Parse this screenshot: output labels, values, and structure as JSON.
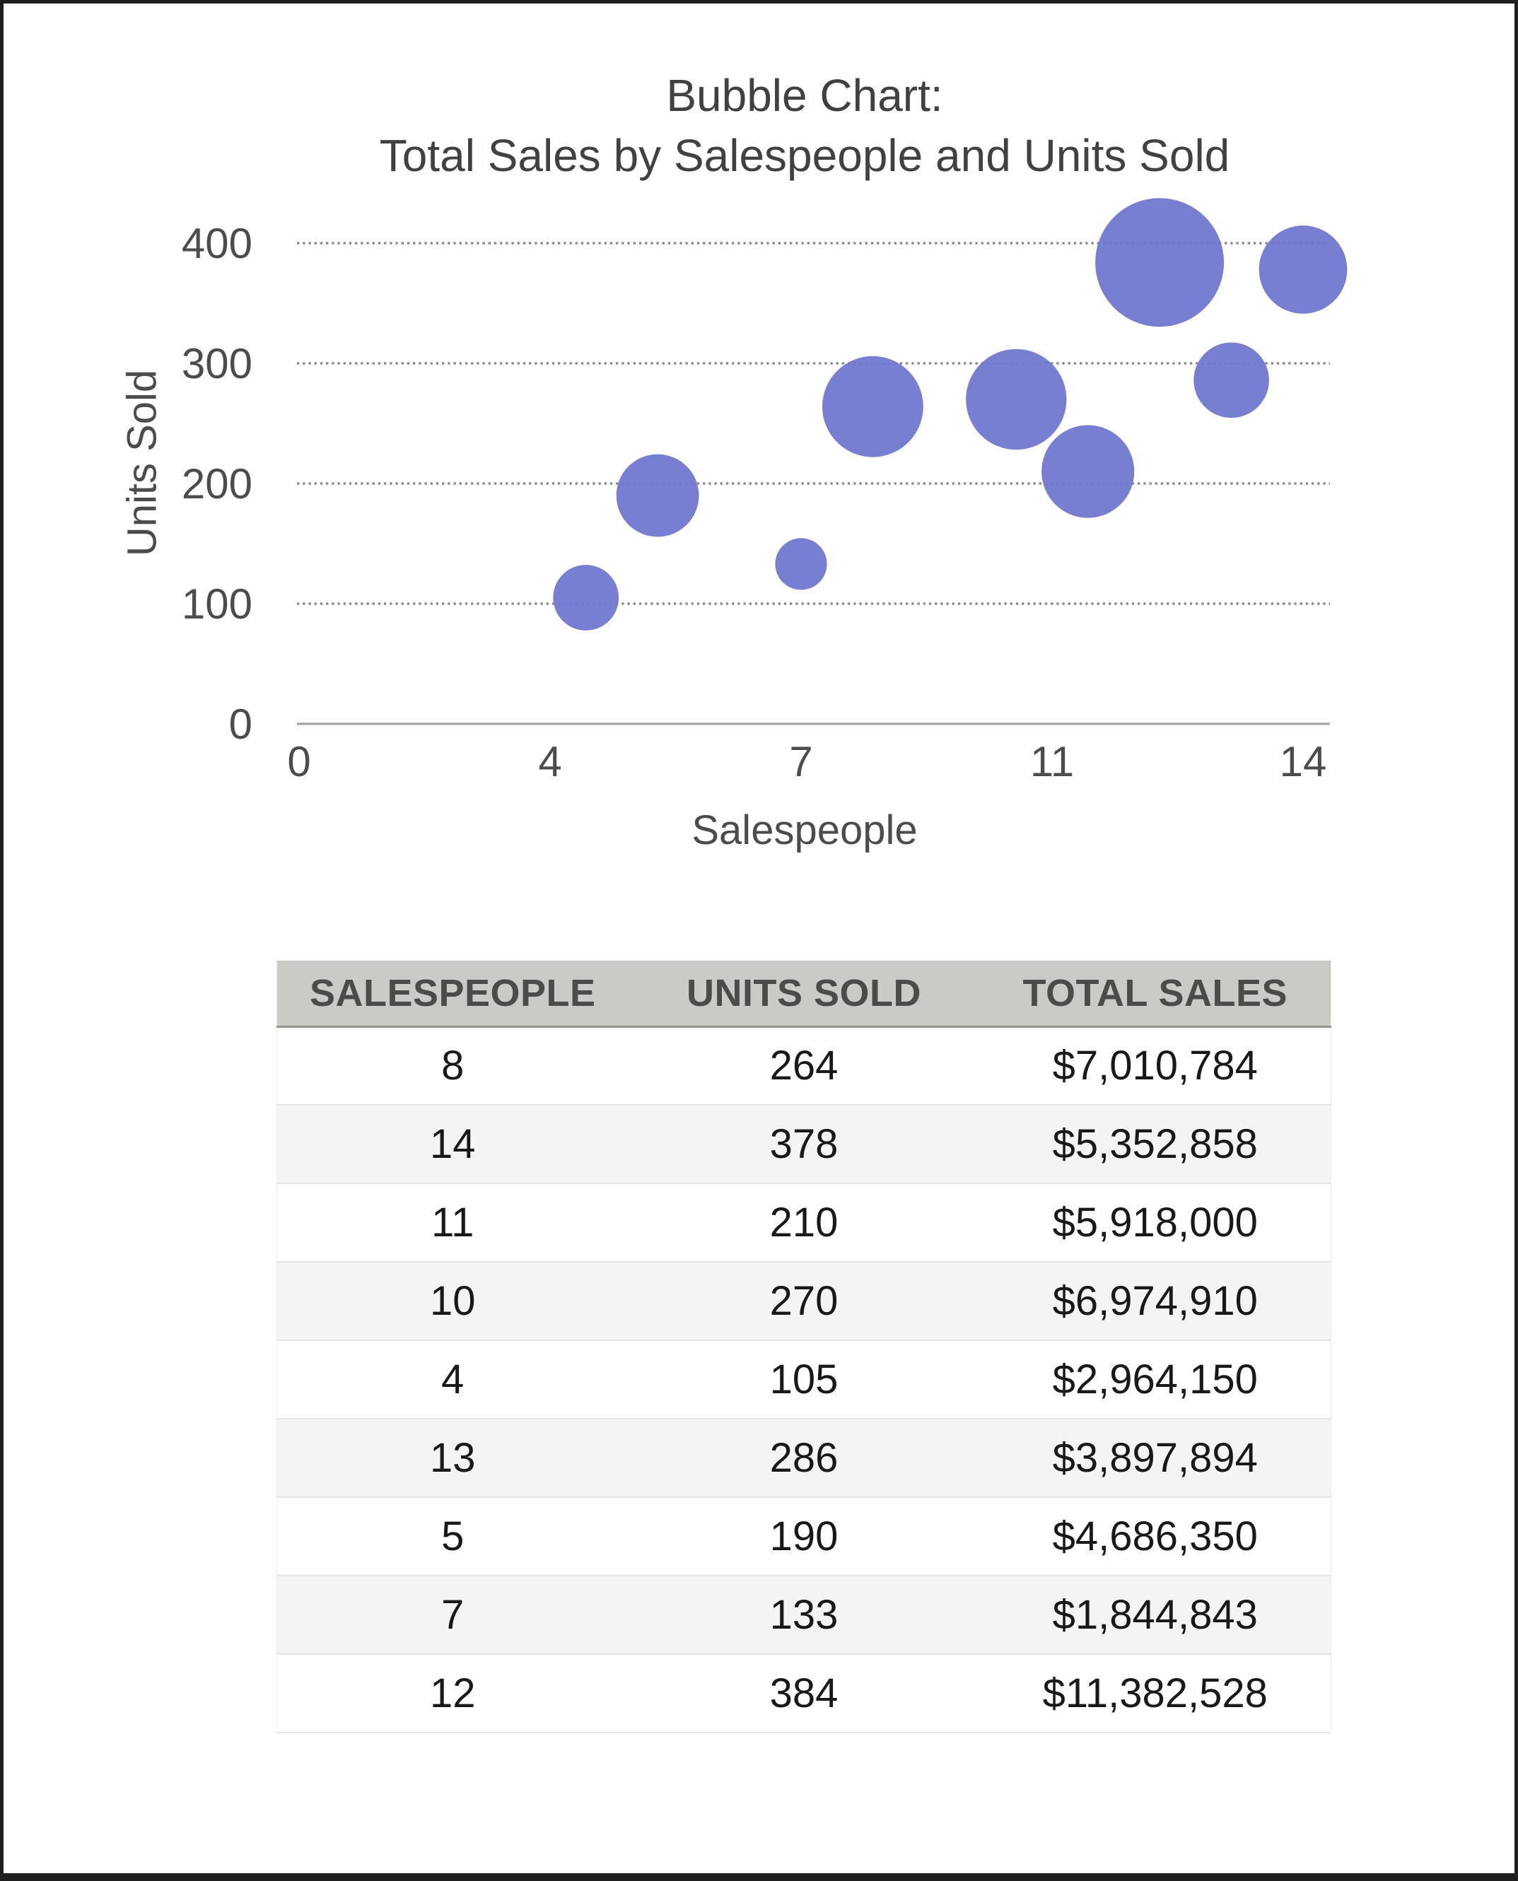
{
  "chart": {
    "title_line1": "Bubble Chart:",
    "title_line2": "Total Sales by Salespeople and Units Sold",
    "x_axis_label": "Salespeople",
    "y_axis_label": "Units Sold",
    "colors": {
      "bubble": "#7177CD",
      "gridline": "#8e8e8e",
      "axis_line": "#ababab",
      "tick_text": "#4c4c4c",
      "title_text": "#414141"
    }
  },
  "chart_data": {
    "type": "scatter",
    "variant": "bubble",
    "title": "Bubble Chart: Total Sales by Salespeople and Units Sold",
    "xlabel": "Salespeople",
    "ylabel": "Units Sold",
    "xlim": [
      0,
      14
    ],
    "ylim": [
      0,
      400
    ],
    "x_ticks": [
      "0",
      "4",
      "7",
      "11",
      "14"
    ],
    "y_ticks": [
      "0",
      "100",
      "200",
      "300",
      "400"
    ],
    "grid": "horizontal dotted",
    "legend": "none",
    "size_encodes": "total_sales (bubble area)",
    "points": [
      {
        "salespeople": 8,
        "units_sold": 264,
        "total_sales": 7010784
      },
      {
        "salespeople": 14,
        "units_sold": 378,
        "total_sales": 5352858
      },
      {
        "salespeople": 11,
        "units_sold": 210,
        "total_sales": 5918000
      },
      {
        "salespeople": 10,
        "units_sold": 270,
        "total_sales": 6974910
      },
      {
        "salespeople": 4,
        "units_sold": 105,
        "total_sales": 2964150
      },
      {
        "salespeople": 13,
        "units_sold": 286,
        "total_sales": 3897894
      },
      {
        "salespeople": 5,
        "units_sold": 190,
        "total_sales": 4686350
      },
      {
        "salespeople": 7,
        "units_sold": 133,
        "total_sales": 1844843
      },
      {
        "salespeople": 12,
        "units_sold": 384,
        "total_sales": 11382528
      }
    ]
  },
  "table": {
    "headers": [
      "SALESPEOPLE",
      "UNITS SOLD",
      "TOTAL SALES"
    ],
    "rows": [
      [
        "8",
        "264",
        "$7,010,784"
      ],
      [
        "14",
        "378",
        "$5,352,858"
      ],
      [
        "11",
        "210",
        "$5,918,000"
      ],
      [
        "10",
        "270",
        "$6,974,910"
      ],
      [
        "4",
        "105",
        "$2,964,150"
      ],
      [
        "13",
        "286",
        "$3,897,894"
      ],
      [
        "5",
        "190",
        "$4,686,350"
      ],
      [
        "7",
        "133",
        "$1,844,843"
      ],
      [
        "12",
        "384",
        "$11,382,528"
      ]
    ]
  }
}
